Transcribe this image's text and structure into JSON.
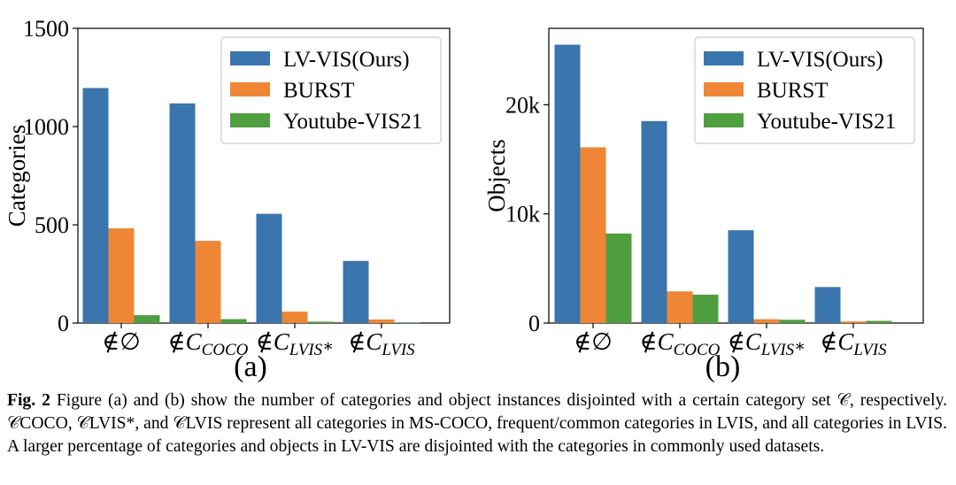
{
  "chart_data": [
    {
      "type": "bar",
      "panel_label": "(a)",
      "ylabel": "Categories",
      "ylim": [
        0,
        1500
      ],
      "yticks": [
        0,
        500,
        1000,
        1500
      ],
      "ytick_labels": [
        "0",
        "500",
        "1000",
        "1500"
      ],
      "categories": [
        "∉∅",
        "∉C_COCO",
        "∉C_LVIS*",
        "∉C_LVIS"
      ],
      "series": [
        {
          "name": "LV-VIS(Ours)",
          "color": "#3a75ae",
          "values": [
            1196,
            1118,
            556,
            316
          ]
        },
        {
          "name": "BURST",
          "color": "#ef8636",
          "values": [
            482,
            418,
            58,
            18
          ]
        },
        {
          "name": "Youtube-VIS21",
          "color": "#4f9e3f",
          "values": [
            40,
            20,
            7,
            2
          ]
        }
      ],
      "legend_position": "top-right"
    },
    {
      "type": "bar",
      "panel_label": "(b)",
      "ylabel": "Objects",
      "ylim": [
        0,
        27000
      ],
      "yticks": [
        0,
        10000,
        20000
      ],
      "ytick_labels": [
        "0",
        "10k",
        "20k"
      ],
      "categories": [
        "∉∅",
        "∉C_COCO",
        "∉C_LVIS*",
        "∉C_LVIS"
      ],
      "series": [
        {
          "name": "LV-VIS(Ours)",
          "color": "#3a75ae",
          "values": [
            25500,
            18500,
            8500,
            3300
          ]
        },
        {
          "name": "BURST",
          "color": "#ef8636",
          "values": [
            16100,
            2900,
            350,
            150
          ]
        },
        {
          "name": "Youtube-VIS21",
          "color": "#4f9e3f",
          "values": [
            8200,
            2600,
            300,
            200
          ]
        }
      ],
      "legend_position": "top-right"
    }
  ],
  "caption": {
    "label": "Fig. 2",
    "text": "Figure (a) and (b) show the number of categories and object instances disjointed with a certain category set 𝒞, respectively. 𝒞COCO, 𝒞LVIS*, and 𝒞LVIS represent all categories in MS-COCO, frequent/common categories in LVIS, and all categories in LVIS. A larger percentage of categories and objects in LV-VIS are disjointed with the categories in commonly used datasets."
  }
}
